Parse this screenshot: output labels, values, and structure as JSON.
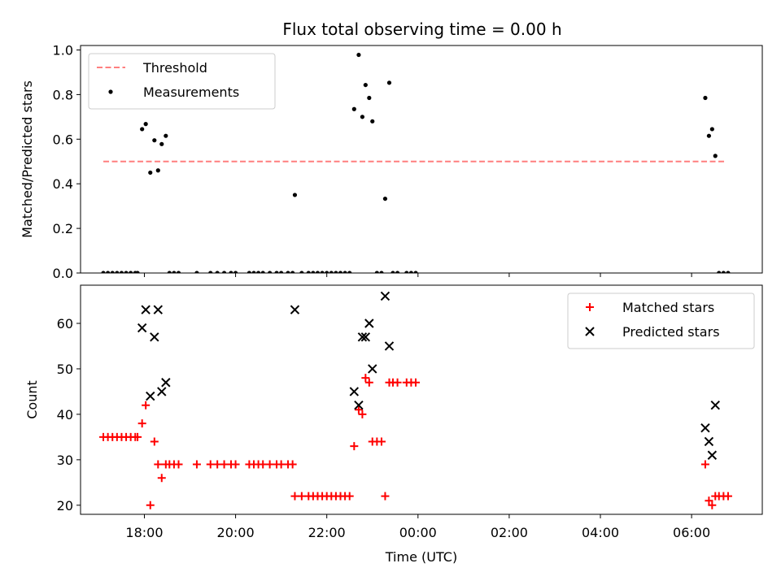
{
  "title": "Flux total observing time = 0.00 h",
  "chart_data": [
    {
      "type": "scatter",
      "title": "Flux total observing time = 0.00 h",
      "ylabel": "Matched/Predicted stars",
      "xlabel": "",
      "ylim": [
        0,
        1.02
      ],
      "xlim": [
        16.6,
        31.55
      ],
      "yticks": [
        0.0,
        0.2,
        0.4,
        0.6,
        0.8,
        1.0
      ],
      "ytick_labels": [
        "0.0",
        "0.2",
        "0.4",
        "0.6",
        "0.8",
        "1.0"
      ],
      "legend": {
        "position": "top-left",
        "entries": [
          {
            "label": "Threshold",
            "style": "dashed-line",
            "color": "#ff7f7f"
          },
          {
            "label": "Measurements",
            "style": "dot",
            "color": "#000000"
          }
        ]
      },
      "threshold": {
        "name": "Threshold",
        "value": 0.5,
        "x_start": 17.1,
        "x_end": 30.75,
        "color": "#ff7f7f"
      },
      "series": [
        {
          "name": "Measurements",
          "marker": "dot",
          "color": "#000000",
          "points": [
            [
              17.1,
              0
            ],
            [
              17.2,
              0
            ],
            [
              17.3,
              0
            ],
            [
              17.4,
              0
            ],
            [
              17.5,
              0
            ],
            [
              17.6,
              0
            ],
            [
              17.7,
              0
            ],
            [
              17.8,
              0
            ],
            [
              17.85,
              0
            ],
            [
              17.95,
              0.645
            ],
            [
              18.03,
              0.668
            ],
            [
              18.13,
              0.45
            ],
            [
              18.22,
              0.595
            ],
            [
              18.3,
              0.46
            ],
            [
              18.38,
              0.578
            ],
            [
              18.47,
              0.615
            ],
            [
              18.55,
              0
            ],
            [
              18.65,
              0
            ],
            [
              18.75,
              0
            ],
            [
              19.15,
              0
            ],
            [
              19.45,
              0
            ],
            [
              19.6,
              0
            ],
            [
              19.75,
              0
            ],
            [
              19.9,
              0
            ],
            [
              20.0,
              0
            ],
            [
              20.3,
              0
            ],
            [
              20.4,
              0
            ],
            [
              20.5,
              0
            ],
            [
              20.6,
              0
            ],
            [
              20.75,
              0
            ],
            [
              20.9,
              0
            ],
            [
              21.0,
              0
            ],
            [
              21.15,
              0
            ],
            [
              21.25,
              0
            ],
            [
              21.3,
              0.35
            ],
            [
              21.45,
              0
            ],
            [
              21.6,
              0
            ],
            [
              21.7,
              0
            ],
            [
              21.8,
              0
            ],
            [
              21.9,
              0
            ],
            [
              22.0,
              0
            ],
            [
              22.1,
              0
            ],
            [
              22.2,
              0
            ],
            [
              22.3,
              0
            ],
            [
              22.4,
              0
            ],
            [
              22.5,
              0
            ],
            [
              22.6,
              0.735
            ],
            [
              22.7,
              0.978
            ],
            [
              22.78,
              0.7
            ],
            [
              22.85,
              0.843
            ],
            [
              22.93,
              0.785
            ],
            [
              23.0,
              0.68
            ],
            [
              23.1,
              0
            ],
            [
              23.2,
              0
            ],
            [
              23.28,
              0.333
            ],
            [
              23.37,
              0.853
            ],
            [
              23.45,
              0
            ],
            [
              23.55,
              0
            ],
            [
              23.75,
              0
            ],
            [
              23.85,
              0
            ],
            [
              23.95,
              0
            ],
            [
              30.3,
              0.785
            ],
            [
              30.38,
              0.615
            ],
            [
              30.45,
              0.645
            ],
            [
              30.52,
              0.525
            ],
            [
              30.6,
              0
            ],
            [
              30.7,
              0
            ],
            [
              30.8,
              0
            ]
          ]
        }
      ]
    },
    {
      "type": "scatter",
      "title": "",
      "xlabel": "Time (UTC)",
      "ylabel": "Count",
      "ylim": [
        18,
        68.4
      ],
      "xlim": [
        16.6,
        31.55
      ],
      "yticks": [
        20,
        30,
        40,
        50,
        60
      ],
      "ytick_labels": [
        "20",
        "30",
        "40",
        "50",
        "60"
      ],
      "xticks": [
        18,
        20,
        22,
        24,
        26,
        28,
        30
      ],
      "xtick_labels": [
        "18:00",
        "20:00",
        "22:00",
        "00:00",
        "02:00",
        "04:00",
        "06:00"
      ],
      "legend": {
        "position": "top-right",
        "entries": [
          {
            "label": "Matched stars",
            "style": "plus",
            "color": "#ff0000"
          },
          {
            "label": "Predicted stars",
            "style": "x",
            "color": "#000000"
          }
        ]
      },
      "series": [
        {
          "name": "Matched stars",
          "marker": "plus",
          "color": "#ff0000",
          "points": [
            [
              17.1,
              35
            ],
            [
              17.2,
              35
            ],
            [
              17.3,
              35
            ],
            [
              17.4,
              35
            ],
            [
              17.5,
              35
            ],
            [
              17.6,
              35
            ],
            [
              17.7,
              35
            ],
            [
              17.8,
              35
            ],
            [
              17.85,
              35
            ],
            [
              17.95,
              38
            ],
            [
              18.03,
              42
            ],
            [
              18.13,
              20
            ],
            [
              18.22,
              34
            ],
            [
              18.3,
              29
            ],
            [
              18.38,
              26
            ],
            [
              18.47,
              29
            ],
            [
              18.55,
              29
            ],
            [
              18.65,
              29
            ],
            [
              18.75,
              29
            ],
            [
              19.15,
              29
            ],
            [
              19.45,
              29
            ],
            [
              19.6,
              29
            ],
            [
              19.75,
              29
            ],
            [
              19.9,
              29
            ],
            [
              20.0,
              29
            ],
            [
              20.3,
              29
            ],
            [
              20.4,
              29
            ],
            [
              20.5,
              29
            ],
            [
              20.6,
              29
            ],
            [
              20.75,
              29
            ],
            [
              20.9,
              29
            ],
            [
              21.0,
              29
            ],
            [
              21.15,
              29
            ],
            [
              21.25,
              29
            ],
            [
              21.3,
              22
            ],
            [
              21.45,
              22
            ],
            [
              21.6,
              22
            ],
            [
              21.7,
              22
            ],
            [
              21.8,
              22
            ],
            [
              21.9,
              22
            ],
            [
              22.0,
              22
            ],
            [
              22.1,
              22
            ],
            [
              22.2,
              22
            ],
            [
              22.3,
              22
            ],
            [
              22.4,
              22
            ],
            [
              22.5,
              22
            ],
            [
              22.6,
              33
            ],
            [
              22.7,
              41
            ],
            [
              22.78,
              40
            ],
            [
              22.85,
              48
            ],
            [
              22.93,
              47
            ],
            [
              23.0,
              34
            ],
            [
              23.1,
              34
            ],
            [
              23.2,
              34
            ],
            [
              23.28,
              22
            ],
            [
              23.37,
              47
            ],
            [
              23.45,
              47
            ],
            [
              23.55,
              47
            ],
            [
              23.75,
              47
            ],
            [
              23.85,
              47
            ],
            [
              23.95,
              47
            ],
            [
              30.3,
              29
            ],
            [
              30.38,
              21
            ],
            [
              30.45,
              20
            ],
            [
              30.52,
              22
            ],
            [
              30.6,
              22
            ],
            [
              30.7,
              22
            ],
            [
              30.8,
              22
            ]
          ]
        },
        {
          "name": "Predicted stars",
          "marker": "x",
          "color": "#000000",
          "points": [
            [
              17.95,
              59
            ],
            [
              18.03,
              63
            ],
            [
              18.13,
              44
            ],
            [
              18.22,
              57
            ],
            [
              18.3,
              63
            ],
            [
              18.38,
              45
            ],
            [
              18.47,
              47
            ],
            [
              21.3,
              63
            ],
            [
              22.6,
              45
            ],
            [
              22.7,
              42
            ],
            [
              22.78,
              57
            ],
            [
              22.85,
              57
            ],
            [
              22.93,
              60
            ],
            [
              23.0,
              50
            ],
            [
              23.28,
              66
            ],
            [
              23.37,
              55
            ],
            [
              30.3,
              37
            ],
            [
              30.38,
              34
            ],
            [
              30.45,
              31
            ],
            [
              30.52,
              42
            ]
          ]
        }
      ]
    }
  ]
}
